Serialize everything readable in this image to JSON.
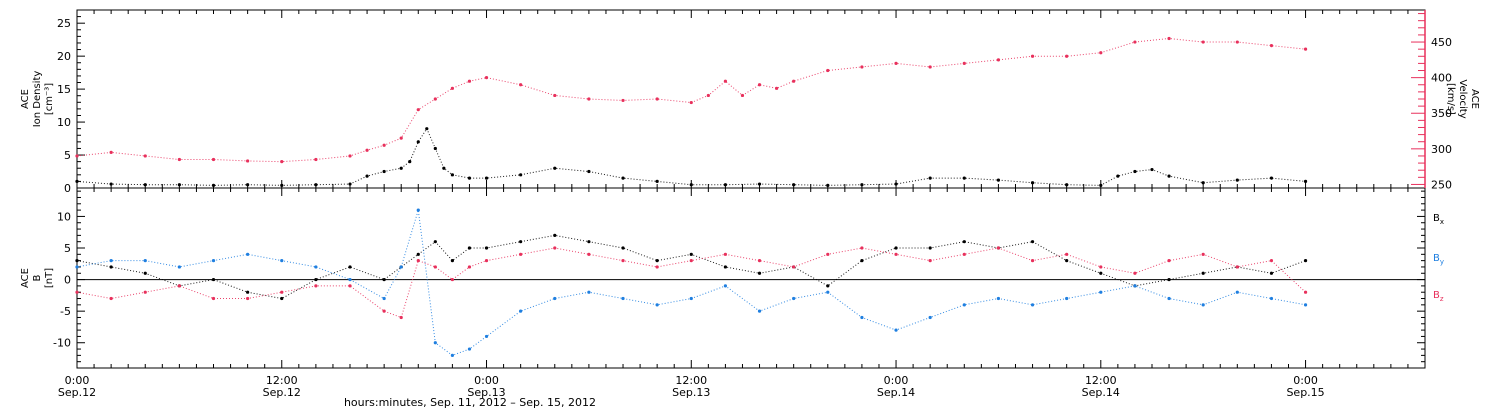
{
  "colors": {
    "black": "#000000",
    "blue": "#1f7fe0",
    "red": "#e8305c"
  },
  "x_axis": {
    "title": "hours:minutes, Sep. 11, 2012 – Sep. 15, 2012",
    "ticks": [
      {
        "hour": 0,
        "time": "0:00",
        "date": "Sep.12"
      },
      {
        "hour": 12,
        "time": "12:00",
        "date": "Sep.12"
      },
      {
        "hour": 24,
        "time": "0:00",
        "date": "Sep.13"
      },
      {
        "hour": 36,
        "time": "12:00",
        "date": "Sep.13"
      },
      {
        "hour": 48,
        "time": "0:00",
        "date": "Sep.14"
      },
      {
        "hour": 60,
        "time": "12:00",
        "date": "Sep.14"
      },
      {
        "hour": 72,
        "time": "0:00",
        "date": "Sep.15"
      }
    ]
  },
  "chart_data": [
    {
      "type": "scatter",
      "panel": "top",
      "xlabel": "",
      "xlim": [
        0,
        79
      ],
      "left_axis": {
        "label": [
          "ACE",
          "Ion Density",
          "[cm⁻³]"
        ],
        "ylim": [
          0,
          27
        ],
        "ticks": [
          "0",
          "5",
          "10",
          "15",
          "20",
          "25"
        ],
        "tick_values": [
          0,
          5,
          10,
          15,
          20,
          25
        ]
      },
      "right_axis": {
        "label": [
          "ACE",
          "Velocity",
          "[km/s]"
        ],
        "ylim": [
          245,
          495
        ],
        "ticks": [
          "250",
          "300",
          "350",
          "400",
          "450"
        ],
        "tick_values": [
          250,
          300,
          350,
          400,
          450
        ]
      },
      "series": [
        {
          "color": "#000000",
          "axis": "left",
          "x": [
            0,
            2,
            4,
            6,
            8,
            10,
            12,
            14,
            16,
            17,
            18,
            19,
            19.5,
            20,
            20.5,
            21,
            21.5,
            22,
            23,
            24,
            26,
            28,
            30,
            32,
            34,
            36,
            38,
            40,
            42,
            44,
            46,
            48,
            50,
            52,
            54,
            56,
            58,
            60,
            61,
            62,
            63,
            64,
            66,
            68,
            70,
            72
          ],
          "y": [
            1.0,
            0.6,
            0.5,
            0.5,
            0.4,
            0.5,
            0.4,
            0.5,
            0.6,
            1.8,
            2.5,
            3.0,
            4.0,
            7.0,
            9.0,
            6.0,
            3.0,
            2.0,
            1.5,
            1.5,
            2.0,
            3.0,
            2.5,
            1.5,
            1.0,
            0.5,
            0.5,
            0.6,
            0.5,
            0.4,
            0.5,
            0.6,
            1.5,
            1.5,
            1.2,
            0.8,
            0.5,
            0.4,
            1.8,
            2.5,
            2.8,
            1.8,
            0.8,
            1.2,
            1.5,
            1.0
          ]
        },
        {
          "color": "#e8305c",
          "axis": "right",
          "x": [
            0,
            2,
            4,
            6,
            8,
            10,
            12,
            14,
            16,
            17,
            18,
            19,
            20,
            21,
            22,
            23,
            24,
            26,
            28,
            30,
            32,
            34,
            36,
            37,
            38,
            39,
            40,
            41,
            42,
            44,
            46,
            48,
            50,
            52,
            54,
            56,
            58,
            60,
            62,
            64,
            66,
            68,
            70,
            72
          ],
          "y": [
            290,
            295,
            290,
            285,
            285,
            283,
            282,
            285,
            290,
            298,
            305,
            315,
            355,
            370,
            385,
            395,
            400,
            390,
            375,
            370,
            368,
            370,
            365,
            375,
            395,
            375,
            390,
            385,
            395,
            410,
            415,
            420,
            415,
            420,
            425,
            430,
            430,
            435,
            450,
            455,
            450,
            450,
            445,
            440
          ]
        }
      ]
    },
    {
      "type": "scatter",
      "panel": "bottom",
      "xlabel": "",
      "xlim": [
        0,
        79
      ],
      "ylabel": [
        "ACE",
        "B",
        "[nT]"
      ],
      "ylim": [
        -14,
        14.5
      ],
      "ticks": [
        "-10",
        "-5",
        "0",
        "5",
        "10"
      ],
      "tick_values": [
        -10,
        -5,
        0,
        5,
        10
      ],
      "legend": {
        "placement": "right",
        "entries": [
          "Bx",
          "By",
          "Bz"
        ]
      },
      "series": [
        {
          "name": "Bx",
          "color": "#000000",
          "x": [
            0,
            2,
            4,
            6,
            8,
            10,
            12,
            14,
            16,
            18,
            19,
            20,
            21,
            22,
            23,
            24,
            26,
            28,
            30,
            32,
            34,
            36,
            38,
            40,
            42,
            44,
            46,
            48,
            50,
            52,
            54,
            56,
            58,
            60,
            62,
            64,
            66,
            68,
            70,
            72
          ],
          "y": [
            3,
            2,
            1,
            -1,
            0,
            -2,
            -3,
            0,
            2,
            0,
            2,
            4,
            6,
            3,
            5,
            5,
            6,
            7,
            6,
            5,
            3,
            4,
            2,
            1,
            2,
            -1,
            3,
            5,
            5,
            6,
            5,
            6,
            3,
            1,
            -1,
            0,
            1,
            2,
            1,
            3
          ]
        },
        {
          "name": "By",
          "color": "#1f7fe0",
          "x": [
            0,
            2,
            4,
            6,
            8,
            10,
            12,
            14,
            16,
            18,
            19,
            20,
            21,
            22,
            23,
            24,
            26,
            28,
            30,
            32,
            34,
            36,
            38,
            40,
            42,
            44,
            46,
            48,
            50,
            52,
            54,
            56,
            58,
            60,
            62,
            64,
            66,
            68,
            70,
            72
          ],
          "y": [
            2,
            3,
            3,
            2,
            3,
            4,
            3,
            2,
            0,
            -3,
            2,
            11,
            -10,
            -12,
            -11,
            -9,
            -5,
            -3,
            -2,
            -3,
            -4,
            -3,
            -1,
            -5,
            -3,
            -2,
            -6,
            -8,
            -6,
            -4,
            -3,
            -4,
            -3,
            -2,
            -1,
            -3,
            -4,
            -2,
            -3,
            -4
          ]
        },
        {
          "name": "Bz",
          "color": "#e8305c",
          "x": [
            0,
            2,
            4,
            6,
            8,
            10,
            12,
            14,
            16,
            18,
            19,
            20,
            21,
            22,
            23,
            24,
            26,
            28,
            30,
            32,
            34,
            36,
            38,
            40,
            42,
            44,
            46,
            48,
            50,
            52,
            54,
            56,
            58,
            60,
            62,
            64,
            66,
            68,
            70,
            72
          ],
          "y": [
            -2,
            -3,
            -2,
            -1,
            -3,
            -3,
            -2,
            -1,
            -1,
            -5,
            -6,
            3,
            2,
            0,
            2,
            3,
            4,
            5,
            4,
            3,
            2,
            3,
            4,
            3,
            2,
            4,
            5,
            4,
            3,
            4,
            5,
            3,
            4,
            2,
            1,
            3,
            4,
            2,
            3,
            -2
          ]
        }
      ]
    }
  ]
}
